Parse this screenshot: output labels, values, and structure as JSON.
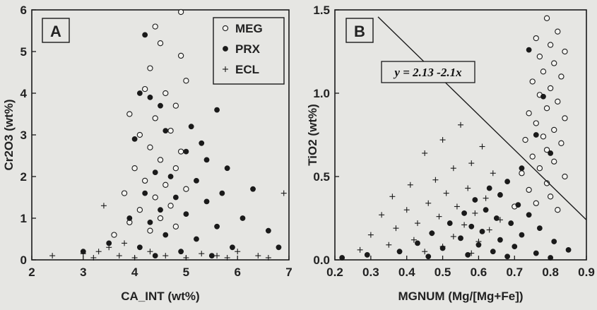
{
  "figure": {
    "background_color": "#e6e6e3",
    "ink_color": "#1a1a1a"
  },
  "chart_data": [
    {
      "type": "scatter",
      "panel_label": "A",
      "xlabel": "CA_INT (wt%)",
      "ylabel": "Cr2O3 (wt%)",
      "xlim": [
        2,
        7
      ],
      "ylim": [
        0,
        6
      ],
      "xticks": [
        "2",
        "3",
        "4",
        "5",
        "6",
        "7"
      ],
      "yticks": [
        "0",
        "1",
        "2",
        "3",
        "4",
        "5",
        "6"
      ],
      "legend": {
        "position": "top-right",
        "entries": [
          "MEG",
          "PRX",
          "ECL"
        ]
      },
      "series": [
        {
          "name": "MEG",
          "marker": "open-circle",
          "points": [
            [
              4.9,
              5.95
            ],
            [
              4.4,
              5.6
            ],
            [
              4.5,
              5.2
            ],
            [
              4.9,
              4.9
            ],
            [
              4.3,
              4.6
            ],
            [
              5.0,
              4.3
            ],
            [
              4.2,
              4.1
            ],
            [
              4.6,
              4.0
            ],
            [
              3.9,
              3.5
            ],
            [
              4.8,
              3.7
            ],
            [
              4.4,
              3.4
            ],
            [
              4.1,
              3.0
            ],
            [
              4.7,
              3.1
            ],
            [
              4.3,
              2.7
            ],
            [
              4.9,
              2.6
            ],
            [
              4.5,
              2.4
            ],
            [
              4.0,
              2.2
            ],
            [
              4.8,
              2.2
            ],
            [
              4.2,
              1.9
            ],
            [
              4.6,
              1.8
            ],
            [
              3.8,
              1.6
            ],
            [
              4.4,
              1.5
            ],
            [
              5.0,
              1.7
            ],
            [
              4.1,
              1.2
            ],
            [
              4.7,
              1.3
            ],
            [
              3.9,
              0.9
            ],
            [
              4.5,
              1.0
            ],
            [
              4.3,
              0.7
            ],
            [
              3.6,
              0.6
            ],
            [
              4.8,
              0.8
            ]
          ]
        },
        {
          "name": "PRX",
          "marker": "filled-circle",
          "points": [
            [
              4.2,
              5.4
            ],
            [
              4.1,
              4.0
            ],
            [
              4.3,
              3.9
            ],
            [
              4.5,
              3.7
            ],
            [
              5.6,
              3.6
            ],
            [
              4.6,
              3.1
            ],
            [
              5.1,
              3.2
            ],
            [
              5.3,
              2.8
            ],
            [
              4.0,
              2.9
            ],
            [
              5.0,
              2.6
            ],
            [
              5.4,
              2.4
            ],
            [
              5.8,
              2.2
            ],
            [
              4.4,
              2.1
            ],
            [
              4.7,
              2.0
            ],
            [
              5.2,
              1.9
            ],
            [
              5.7,
              1.6
            ],
            [
              6.3,
              1.7
            ],
            [
              4.2,
              1.6
            ],
            [
              4.8,
              1.5
            ],
            [
              5.4,
              1.4
            ],
            [
              4.5,
              1.2
            ],
            [
              5.0,
              1.1
            ],
            [
              6.1,
              1.0
            ],
            [
              3.9,
              1.0
            ],
            [
              4.3,
              0.9
            ],
            [
              5.6,
              0.8
            ],
            [
              6.6,
              0.7
            ],
            [
              4.6,
              0.6
            ],
            [
              5.2,
              0.5
            ],
            [
              3.5,
              0.4
            ],
            [
              4.1,
              0.3
            ],
            [
              5.9,
              0.3
            ],
            [
              6.8,
              0.3
            ],
            [
              4.9,
              0.2
            ],
            [
              3.0,
              0.2
            ],
            [
              4.4,
              0.1
            ],
            [
              5.5,
              0.1
            ]
          ]
        },
        {
          "name": "ECL",
          "marker": "plus",
          "points": [
            [
              2.4,
              0.1
            ],
            [
              3.0,
              0.15
            ],
            [
              3.3,
              0.2
            ],
            [
              3.5,
              0.3
            ],
            [
              3.4,
              1.3
            ],
            [
              3.7,
              0.1
            ],
            [
              4.0,
              0.05
            ],
            [
              4.3,
              0.2
            ],
            [
              4.6,
              0.1
            ],
            [
              5.0,
              0.05
            ],
            [
              5.3,
              0.15
            ],
            [
              5.6,
              0.1
            ],
            [
              6.0,
              0.2
            ],
            [
              6.4,
              0.1
            ],
            [
              6.9,
              1.6
            ],
            [
              6.6,
              0.05
            ],
            [
              3.2,
              0.05
            ],
            [
              3.8,
              0.4
            ],
            [
              5.8,
              0.05
            ]
          ]
        }
      ]
    },
    {
      "type": "scatter",
      "panel_label": "B",
      "xlabel": "MGNUM (Mg/[Mg+Fe])",
      "ylabel": "TiO2 (wt%)",
      "xlim": [
        0.2,
        0.9
      ],
      "ylim": [
        0,
        1.5
      ],
      "xticks": [
        "0.2",
        "0.3",
        "0.4",
        "0.5",
        "0.6",
        "0.7",
        "0.8",
        "0.9"
      ],
      "yticks": [
        "0.0",
        "0.5",
        "1.0",
        "1.5"
      ],
      "annotation": "y = 2.13 -2.1x",
      "line": {
        "intercept": 2.13,
        "slope": -2.1,
        "x_range": [
          0.32,
          0.9
        ]
      },
      "series": [
        {
          "name": "MEG",
          "marker": "open-circle",
          "points": [
            [
              0.79,
              1.45
            ],
            [
              0.82,
              1.37
            ],
            [
              0.76,
              1.33
            ],
            [
              0.8,
              1.29
            ],
            [
              0.84,
              1.25
            ],
            [
              0.77,
              1.22
            ],
            [
              0.81,
              1.18
            ],
            [
              0.78,
              1.13
            ],
            [
              0.83,
              1.1
            ],
            [
              0.75,
              1.07
            ],
            [
              0.8,
              1.03
            ],
            [
              0.77,
              0.99
            ],
            [
              0.82,
              0.95
            ],
            [
              0.79,
              0.91
            ],
            [
              0.74,
              0.88
            ],
            [
              0.84,
              0.85
            ],
            [
              0.76,
              0.82
            ],
            [
              0.81,
              0.78
            ],
            [
              0.78,
              0.74
            ],
            [
              0.73,
              0.72
            ],
            [
              0.83,
              0.7
            ],
            [
              0.79,
              0.66
            ],
            [
              0.75,
              0.62
            ],
            [
              0.81,
              0.59
            ],
            [
              0.77,
              0.55
            ],
            [
              0.72,
              0.52
            ],
            [
              0.84,
              0.5
            ],
            [
              0.79,
              0.46
            ],
            [
              0.74,
              0.42
            ],
            [
              0.8,
              0.38
            ],
            [
              0.76,
              0.34
            ],
            [
              0.7,
              0.32
            ],
            [
              0.82,
              0.3
            ]
          ]
        },
        {
          "name": "PRX",
          "marker": "filled-circle",
          "points": [
            [
              0.74,
              1.26
            ],
            [
              0.78,
              0.98
            ],
            [
              0.76,
              0.75
            ],
            [
              0.8,
              0.64
            ],
            [
              0.72,
              0.55
            ],
            [
              0.68,
              0.47
            ],
            [
              0.63,
              0.43
            ],
            [
              0.66,
              0.39
            ],
            [
              0.59,
              0.36
            ],
            [
              0.71,
              0.33
            ],
            [
              0.62,
              0.3
            ],
            [
              0.56,
              0.28
            ],
            [
              0.74,
              0.27
            ],
            [
              0.65,
              0.25
            ],
            [
              0.69,
              0.22
            ],
            [
              0.52,
              0.22
            ],
            [
              0.58,
              0.2
            ],
            [
              0.77,
              0.19
            ],
            [
              0.61,
              0.17
            ],
            [
              0.47,
              0.16
            ],
            [
              0.72,
              0.15
            ],
            [
              0.55,
              0.13
            ],
            [
              0.66,
              0.12
            ],
            [
              0.81,
              0.11
            ],
            [
              0.43,
              0.1
            ],
            [
              0.6,
              0.09
            ],
            [
              0.7,
              0.08
            ],
            [
              0.5,
              0.07
            ],
            [
              0.85,
              0.06
            ],
            [
              0.64,
              0.05
            ],
            [
              0.38,
              0.05
            ],
            [
              0.76,
              0.04
            ],
            [
              0.57,
              0.03
            ],
            [
              0.29,
              0.03
            ],
            [
              0.68,
              0.02
            ],
            [
              0.46,
              0.02
            ],
            [
              0.22,
              0.01
            ],
            [
              0.8,
              0.01
            ]
          ]
        },
        {
          "name": "ECL",
          "marker": "plus",
          "points": [
            [
              0.55,
              0.81
            ],
            [
              0.5,
              0.72
            ],
            [
              0.61,
              0.68
            ],
            [
              0.45,
              0.64
            ],
            [
              0.58,
              0.58
            ],
            [
              0.53,
              0.55
            ],
            [
              0.64,
              0.52
            ],
            [
              0.48,
              0.48
            ],
            [
              0.41,
              0.45
            ],
            [
              0.57,
              0.43
            ],
            [
              0.51,
              0.4
            ],
            [
              0.36,
              0.38
            ],
            [
              0.62,
              0.37
            ],
            [
              0.46,
              0.34
            ],
            [
              0.54,
              0.32
            ],
            [
              0.4,
              0.3
            ],
            [
              0.59,
              0.28
            ],
            [
              0.33,
              0.27
            ],
            [
              0.49,
              0.26
            ],
            [
              0.66,
              0.24
            ],
            [
              0.43,
              0.22
            ],
            [
              0.56,
              0.21
            ],
            [
              0.37,
              0.19
            ],
            [
              0.63,
              0.18
            ],
            [
              0.47,
              0.16
            ],
            [
              0.3,
              0.15
            ],
            [
              0.53,
              0.14
            ],
            [
              0.42,
              0.12
            ],
            [
              0.6,
              0.11
            ],
            [
              0.35,
              0.09
            ],
            [
              0.5,
              0.08
            ],
            [
              0.27,
              0.06
            ],
            [
              0.45,
              0.05
            ],
            [
              0.58,
              0.04
            ]
          ]
        }
      ]
    }
  ]
}
